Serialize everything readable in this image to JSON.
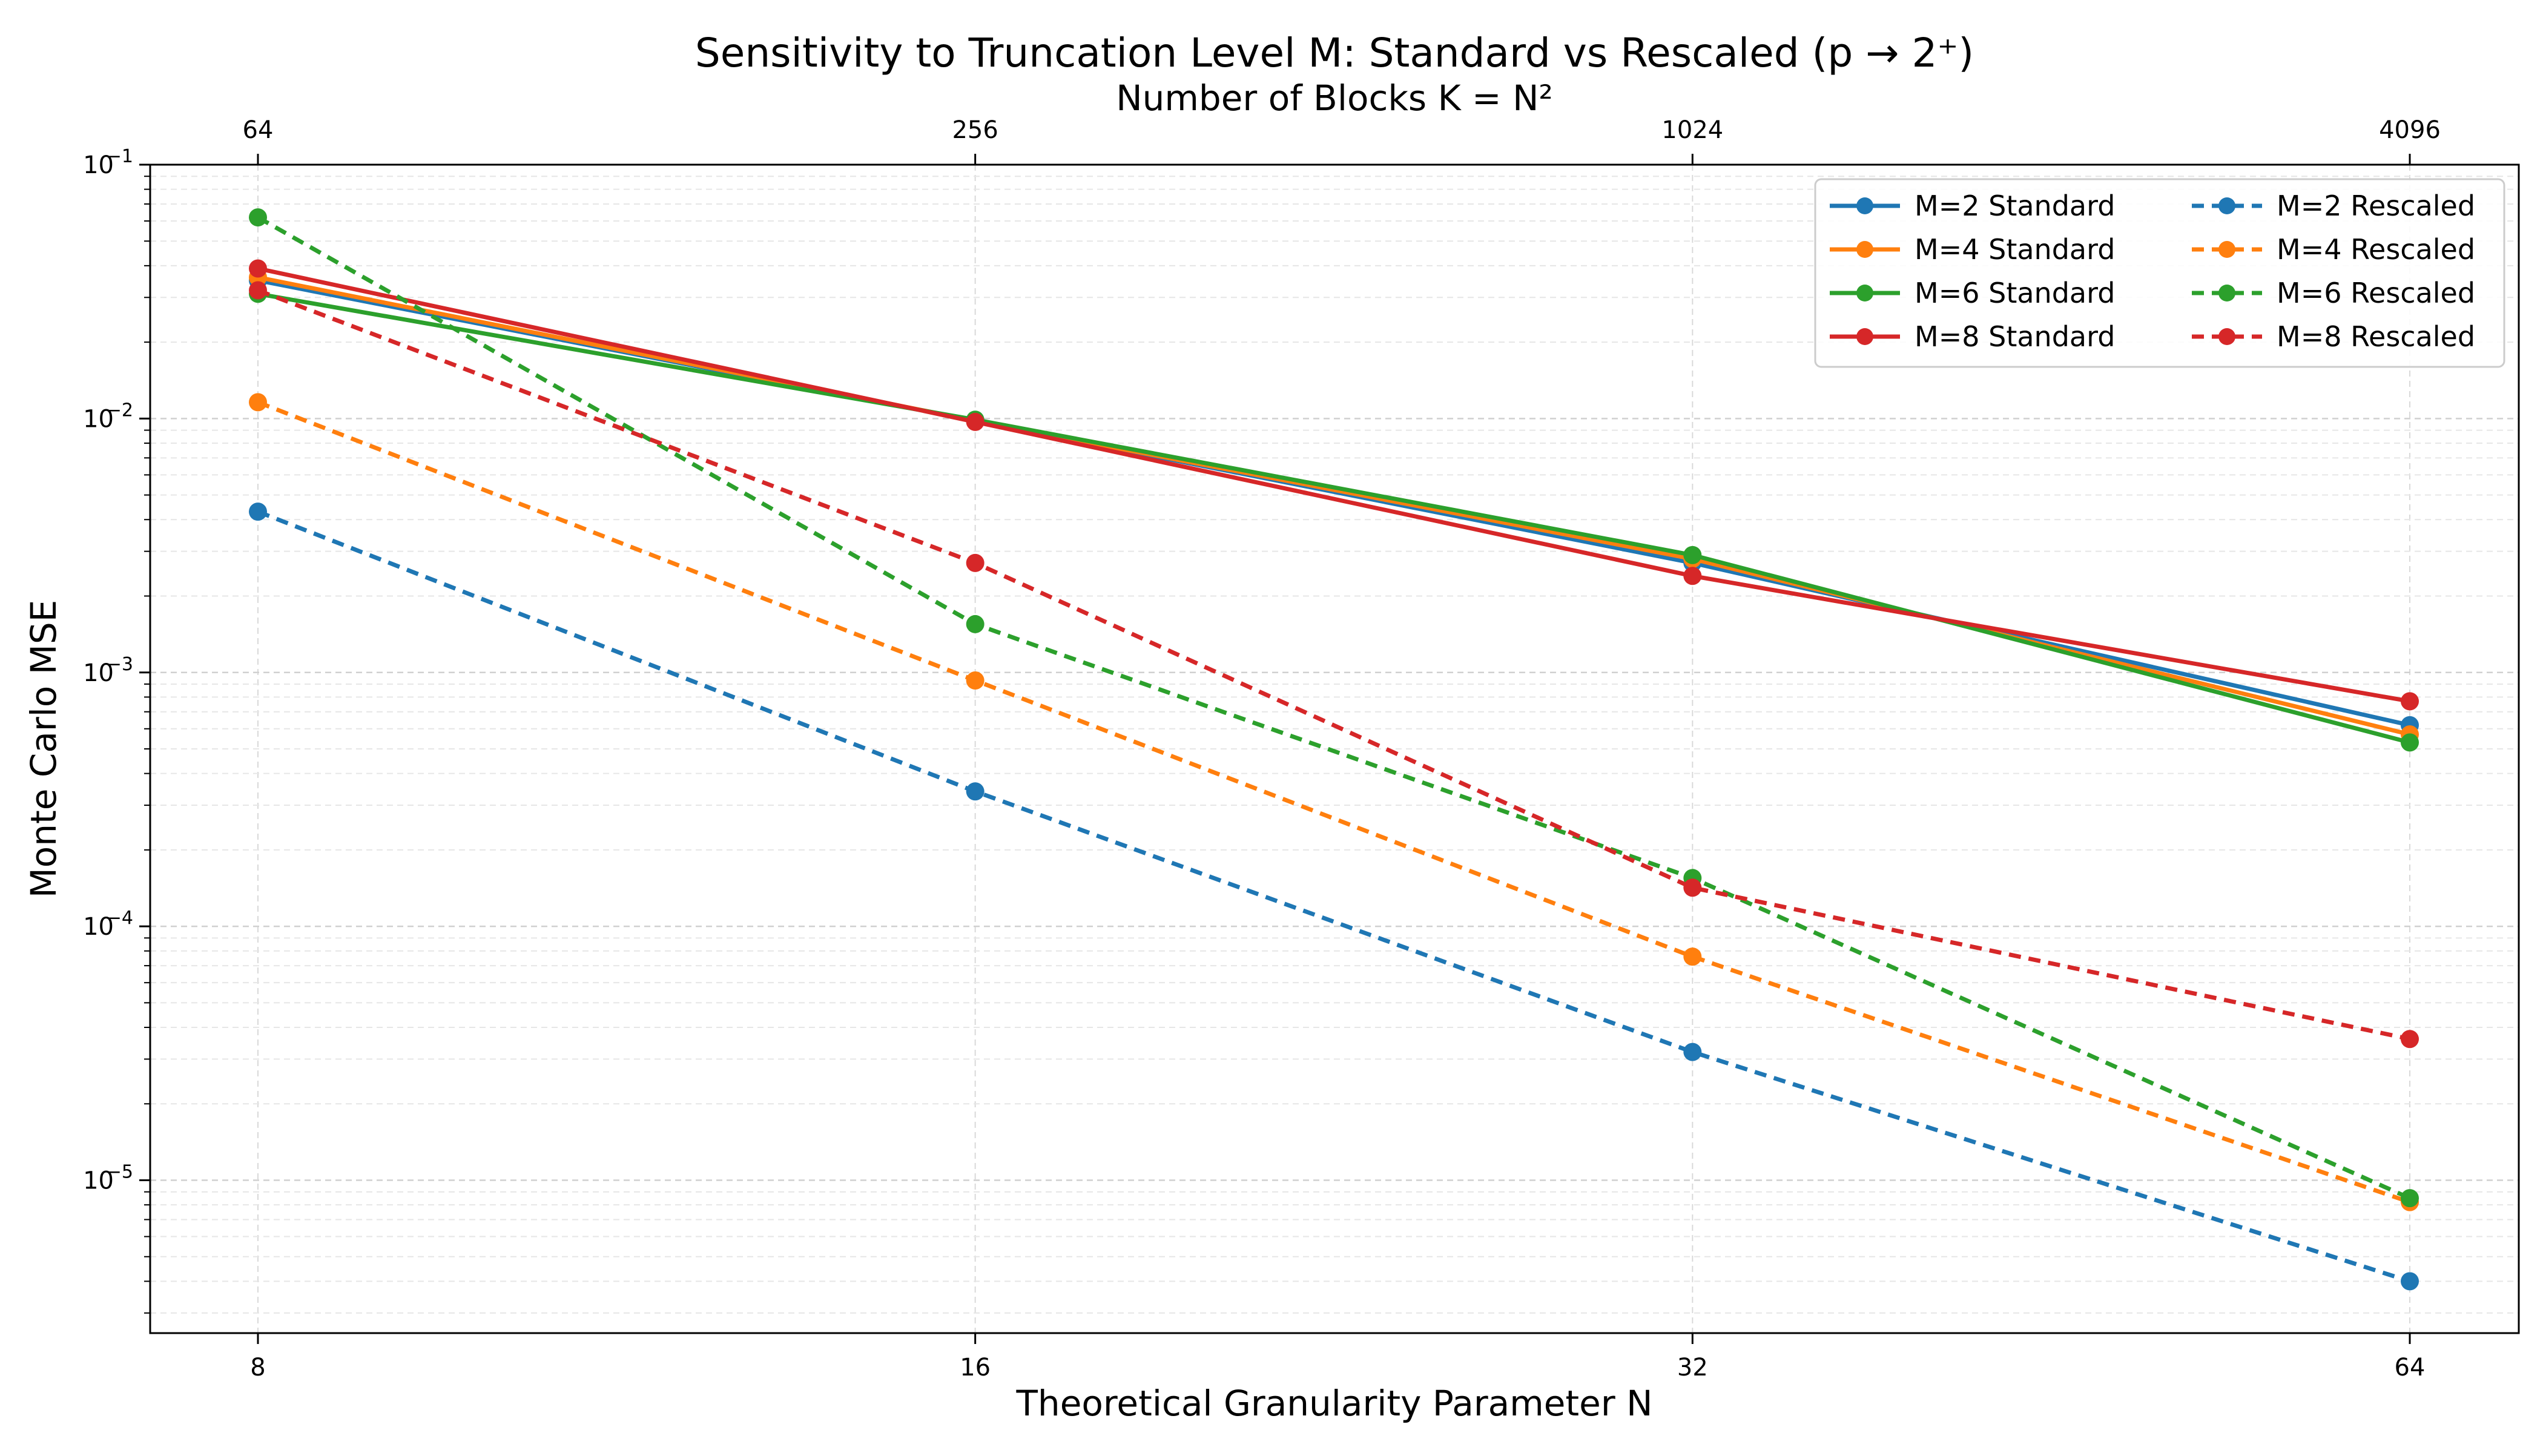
{
  "chart_data": {
    "type": "line",
    "title": "Sensitivity to Truncation Level M: Standard vs Rescaled (p → 2⁺)",
    "xlabel": "Theoretical Granularity Parameter N",
    "ylabel": "Monte Carlo MSE",
    "top_axis_label": "Number of Blocks K = N²",
    "x": [
      8,
      16,
      32,
      64
    ],
    "x_tick_labels": [
      "8",
      "16",
      "32",
      "64"
    ],
    "top_tick_labels": [
      "64",
      "256",
      "1024",
      "4096"
    ],
    "x_scale": "log2",
    "y_scale": "log",
    "ylim": [
      2.5e-06,
      0.1
    ],
    "y_tick_values": [
      1e-05,
      0.0001,
      0.001,
      0.01,
      0.1
    ],
    "y_tick_labels": [
      {
        "base": "10",
        "exp": "−5"
      },
      {
        "base": "10",
        "exp": "−4"
      },
      {
        "base": "10",
        "exp": "−3"
      },
      {
        "base": "10",
        "exp": "−2"
      },
      {
        "base": "10",
        "exp": "−1"
      }
    ],
    "grid": true,
    "legend_position": "top-right",
    "series": [
      {
        "name": "M=2 Standard",
        "color": "#1f77b4",
        "style": "solid",
        "values": [
          0.035,
          0.0098,
          0.0027,
          0.00062
        ]
      },
      {
        "name": "M=4 Standard",
        "color": "#ff7f0e",
        "style": "solid",
        "values": [
          0.036,
          0.0098,
          0.0028,
          0.00057
        ]
      },
      {
        "name": "M=6 Standard",
        "color": "#2ca02c",
        "style": "solid",
        "values": [
          0.031,
          0.0099,
          0.0029,
          0.00053
        ]
      },
      {
        "name": "M=8 Standard",
        "color": "#d62728",
        "style": "solid",
        "values": [
          0.039,
          0.0097,
          0.0024,
          0.00077
        ]
      },
      {
        "name": "M=2 Rescaled",
        "color": "#1f77b4",
        "style": "dashed",
        "values": [
          0.0043,
          0.00034,
          3.2e-05,
          4e-06
        ]
      },
      {
        "name": "M=4 Rescaled",
        "color": "#ff7f0e",
        "style": "dashed",
        "values": [
          0.0116,
          0.00093,
          7.6e-05,
          8.2e-06
        ]
      },
      {
        "name": "M=6 Rescaled",
        "color": "#2ca02c",
        "style": "dashed",
        "values": [
          0.062,
          0.00155,
          0.000155,
          8.5e-06
        ]
      },
      {
        "name": "M=8 Rescaled",
        "color": "#d62728",
        "style": "dashed",
        "values": [
          0.032,
          0.0027,
          0.000142,
          3.6e-05
        ]
      }
    ]
  }
}
